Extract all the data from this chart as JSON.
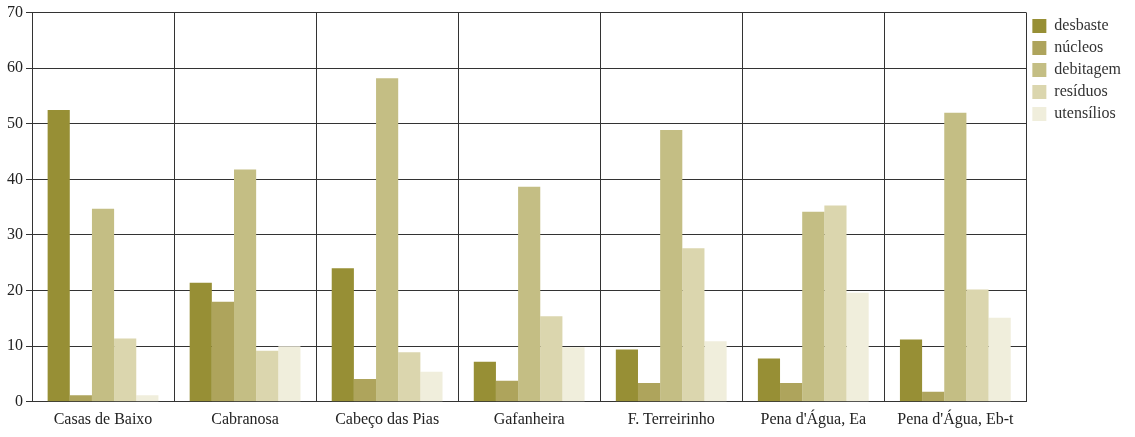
{
  "chart_data": {
    "type": "bar",
    "categories": [
      "Casas de Baixo",
      "Cabranosa",
      "Cabeço das Pias",
      "Gafanheira",
      "F. Terreirinho",
      "Pena d'Água, Ea",
      "Pena d'Água, Eb-t"
    ],
    "series": [
      {
        "name": "desbaste",
        "color": "#978f35",
        "values": [
          52.5,
          21.4,
          24.0,
          7.2,
          9.4,
          7.8,
          11.2
        ]
      },
      {
        "name": "núcleos",
        "color": "#aea45c",
        "values": [
          1.2,
          18.0,
          4.1,
          3.8,
          3.4,
          3.4,
          1.8
        ]
      },
      {
        "name": "debitagem",
        "color": "#c4be84",
        "values": [
          34.7,
          41.8,
          58.2,
          38.7,
          48.9,
          34.2,
          52.0
        ]
      },
      {
        "name": "resíduos",
        "color": "#dbd6ae",
        "values": [
          11.4,
          9.2,
          8.9,
          15.4,
          27.6,
          35.3,
          20.2
        ]
      },
      {
        "name": "utensílios",
        "color": "#f0eedc",
        "values": [
          1.2,
          10.0,
          5.4,
          9.8,
          10.9,
          19.6,
          15.1
        ]
      }
    ],
    "ylim": [
      0,
      70
    ],
    "yticks": [
      0,
      10,
      20,
      30,
      40,
      50,
      60,
      70
    ],
    "grid": true,
    "legend": "top right"
  }
}
